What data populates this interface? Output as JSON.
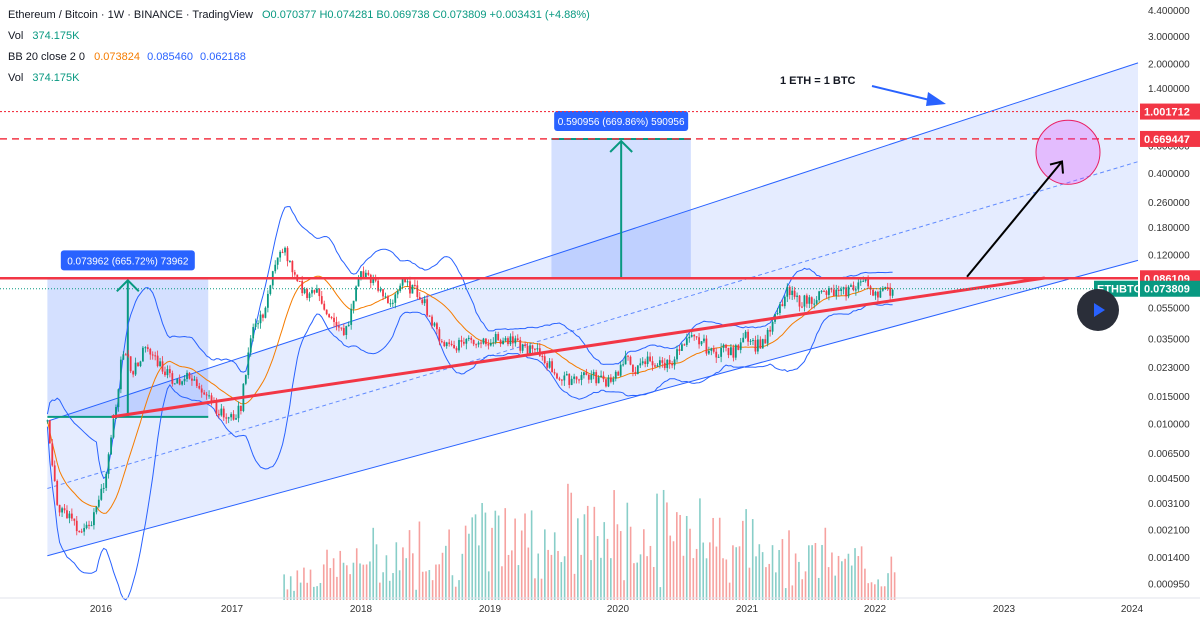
{
  "header": {
    "title": "Ethereum / Bitcoin · 1W · BINANCE · TradingView",
    "ohlc": "O0.070377 H0.074281 B0.069738 C0.073809 +0.003431 (+4.88%)",
    "vol1_label": "Vol",
    "vol1_value": "374.175K",
    "bb_label": "BB 20 close 2 0",
    "bb_mid": "0.073824",
    "bb_upper": "0.085460",
    "bb_lower": "0.062188",
    "vol2_label": "Vol",
    "vol2_value": "374.175K"
  },
  "chart_data": {
    "type": "line",
    "title": "Ethereum / Bitcoin · 1W · BINANCE · TradingView",
    "scale": "log",
    "ylim": [
      0.00085,
      4.6
    ],
    "y_ticks": [
      "4.400000",
      "3.000000",
      "2.000000",
      "1.400000",
      "1.000000",
      "0.700000",
      "0.600000",
      "0.400000",
      "0.260000",
      "0.180000",
      "0.120000",
      "0.086000",
      "0.055000",
      "0.035000",
      "0.023000",
      "0.015000",
      "0.010000",
      "0.006500",
      "0.004500",
      "0.003100",
      "0.002100",
      "0.001400",
      "0.000950"
    ],
    "x_ticks": [
      "2016",
      "2017",
      "2018",
      "2019",
      "2020",
      "2021",
      "2022",
      "2023",
      "2024"
    ],
    "price_tags": {
      "one_eth_one_btc": "1.001712",
      "target": "0.669447",
      "resistance": "0.086109",
      "symbol": "ETHBTC",
      "last": "0.073809"
    },
    "series": [
      {
        "values": [
          [
            "2015-08",
            0.0099
          ],
          [
            "2015-09",
            0.003
          ],
          [
            "2015-10",
            0.0026
          ],
          [
            "2015-11",
            0.002
          ],
          [
            "2015-12",
            0.0022
          ],
          [
            "2016-01",
            0.0035
          ],
          [
            "2016-02",
            0.008
          ],
          [
            "2016-03",
            0.03
          ],
          [
            "2016-04",
            0.022
          ],
          [
            "2016-05",
            0.03
          ],
          [
            "2016-06",
            0.027
          ],
          [
            "2016-07",
            0.022
          ],
          [
            "2016-08",
            0.019
          ],
          [
            "2016-09",
            0.02
          ],
          [
            "2016-10",
            0.018
          ],
          [
            "2016-11",
            0.016
          ],
          [
            "2016-12",
            0.012
          ],
          [
            "2017-01",
            0.0107
          ],
          [
            "2017-02",
            0.0125
          ],
          [
            "2017-03",
            0.04
          ],
          [
            "2017-04",
            0.048
          ],
          [
            "2017-05",
            0.09
          ],
          [
            "2017-06",
            0.14
          ],
          [
            "2017-07",
            0.085
          ],
          [
            "2017-08",
            0.07
          ],
          [
            "2017-09",
            0.072
          ],
          [
            "2017-10",
            0.055
          ],
          [
            "2017-11",
            0.04
          ],
          [
            "2017-12",
            0.04
          ],
          [
            "2018-01",
            0.09
          ],
          [
            "2018-02",
            0.09
          ],
          [
            "2018-03",
            0.07
          ],
          [
            "2018-04",
            0.06
          ],
          [
            "2018-05",
            0.08
          ],
          [
            "2018-06",
            0.074
          ],
          [
            "2018-07",
            0.065
          ],
          [
            "2018-08",
            0.042
          ],
          [
            "2018-09",
            0.033
          ],
          [
            "2018-10",
            0.032
          ],
          [
            "2018-11",
            0.035
          ],
          [
            "2018-12",
            0.034
          ],
          [
            "2019-01",
            0.035
          ],
          [
            "2019-02",
            0.035
          ],
          [
            "2019-03",
            0.034
          ],
          [
            "2019-04",
            0.032
          ],
          [
            "2019-05",
            0.03
          ],
          [
            "2019-06",
            0.028
          ],
          [
            "2019-07",
            0.023
          ],
          [
            "2019-08",
            0.019
          ],
          [
            "2019-09",
            0.02
          ],
          [
            "2019-10",
            0.021
          ],
          [
            "2019-11",
            0.02
          ],
          [
            "2019-12",
            0.019
          ],
          [
            "2020-01",
            0.021
          ],
          [
            "2020-02",
            0.026
          ],
          [
            "2020-03",
            0.022
          ],
          [
            "2020-04",
            0.026
          ],
          [
            "2020-05",
            0.024
          ],
          [
            "2020-06",
            0.025
          ],
          [
            "2020-07",
            0.03
          ],
          [
            "2020-08",
            0.035
          ],
          [
            "2020-09",
            0.034
          ],
          [
            "2020-10",
            0.028
          ],
          [
            "2020-11",
            0.031
          ],
          [
            "2020-12",
            0.028
          ],
          [
            "2021-01",
            0.04
          ],
          [
            "2021-02",
            0.032
          ],
          [
            "2021-03",
            0.035
          ],
          [
            "2021-04",
            0.05
          ],
          [
            "2021-05",
            0.07
          ],
          [
            "2021-06",
            0.062
          ],
          [
            "2021-07",
            0.062
          ],
          [
            "2021-08",
            0.068
          ],
          [
            "2021-09",
            0.07
          ],
          [
            "2021-10",
            0.068
          ],
          [
            "2021-11",
            0.075
          ],
          [
            "2021-12",
            0.083
          ],
          [
            "2022-01",
            0.072
          ],
          [
            "2022-02",
            0.07
          ],
          [
            "2022-03",
            0.0738
          ]
        ]
      }
    ],
    "measurements": [
      {
        "label": "0.073962 (665.72%) 73962",
        "from": 0.0112,
        "to": 0.086,
        "x_start": "2015-08",
        "x_end": "2016-11"
      },
      {
        "label": "0.590956 (669.86%) 590956",
        "from": 0.086,
        "to": 0.669,
        "x_start": "2019-07",
        "x_end": "2020-08"
      }
    ],
    "annotations": [
      {
        "text": "1 ETH = 1 BTC"
      }
    ],
    "horizontal_lines": [
      1.001712,
      0.669447,
      0.086109
    ],
    "grid": false,
    "legend": "top-left"
  }
}
